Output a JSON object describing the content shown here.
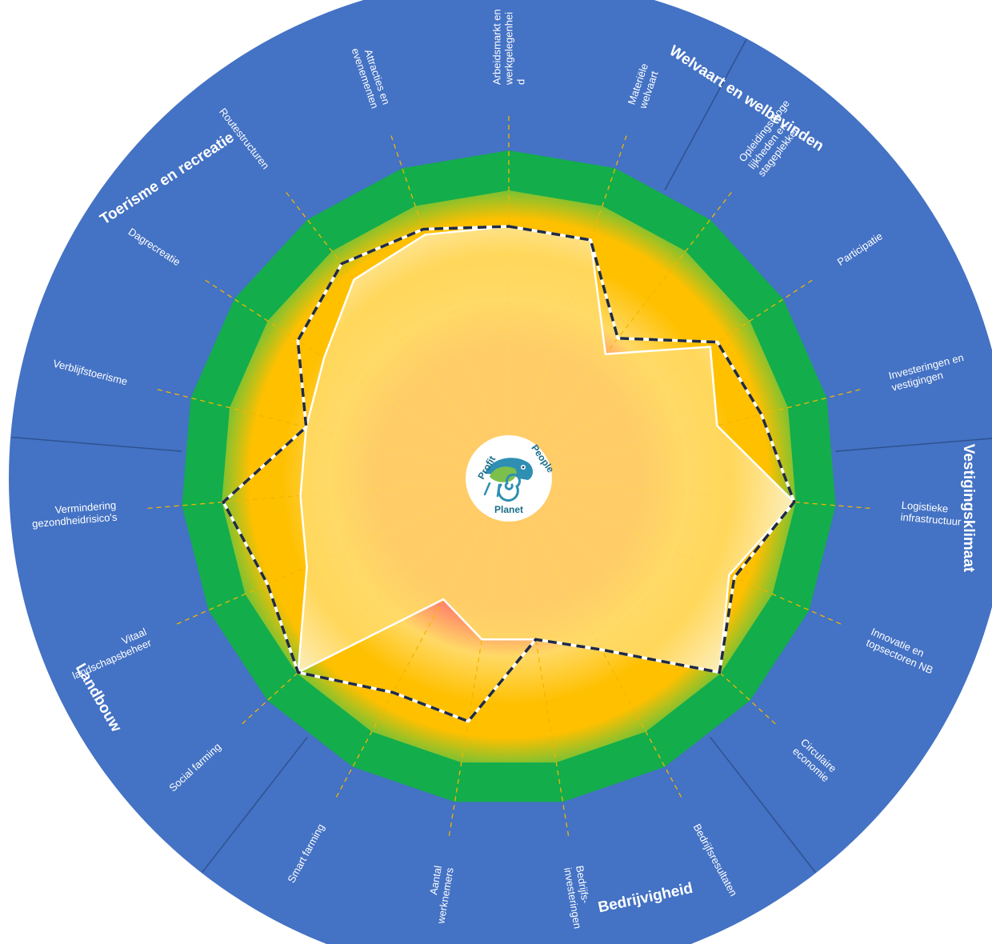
{
  "chart_data": {
    "type": "radar",
    "scale_zones": [
      "red",
      "yellow",
      "orange",
      "green"
    ],
    "categories": [
      {
        "label": [
          "Arbeidsmarkt en",
          "werkgelegenhei",
          "d"
        ],
        "value": 0.88,
        "target": 0.88
      },
      {
        "label": [
          "Materiële",
          "welvaart"
        ],
        "value": 0.88,
        "target": 0.88
      },
      {
        "label": [
          "Opleidingsmoge",
          "lijkheden en",
          "stageplekken"
        ],
        "value": 0.55,
        "target": 0.62
      },
      {
        "label": [
          "Participatie"
        ],
        "value": 0.84,
        "target": 0.87
      },
      {
        "label": [
          "Investeringen en",
          "vestigingen"
        ],
        "value": 0.75,
        "target": 0.91
      },
      {
        "label": [
          "Logistieke",
          "infrastructuur"
        ],
        "value": 1.0,
        "target": 1.0
      },
      {
        "label": [
          "Innovatie en",
          "topsectoren NB"
        ],
        "value": 0.84,
        "target": 0.86
      },
      {
        "label": [
          "Circulaire",
          "economie"
        ],
        "value": 1.0,
        "target": 1.0
      },
      {
        "label": [
          "Bedrijfsresultaten"
        ],
        "value": 0.68,
        "target": 0.68
      },
      {
        "label": [
          "Bedrijfs-",
          "investeringen"
        ],
        "value": 0.57,
        "target": 0.57
      },
      {
        "label": [
          "Aantal",
          "werknemers"
        ],
        "value": 0.57,
        "target": 0.86
      },
      {
        "label": [
          "Smart farming"
        ],
        "value": 0.48,
        "target": 0.85
      },
      {
        "label": [
          "Social farming"
        ],
        "value": 1.0,
        "target": 1.0
      },
      {
        "label": [
          "Vitaal",
          "landschapsbeheer"
        ],
        "value": 0.77,
        "target": 0.92
      },
      {
        "label": [
          "Vermindering",
          "gezondheidrisico's"
        ],
        "value": 0.73,
        "target": 1.0
      },
      {
        "label": [
          "Verblijfstoerisme"
        ],
        "value": 0.73,
        "target": 0.73
      },
      {
        "label": [
          "Dagrecreatie"
        ],
        "value": 0.77,
        "target": 0.88
      },
      {
        "label": [
          "Routestructuren"
        ],
        "value": 0.88,
        "target": 0.95
      },
      {
        "label": [
          "Attracties en",
          "evenementen"
        ],
        "value": 0.9,
        "target": 0.92
      }
    ]
  },
  "sections": [
    {
      "name": "Welvaart en welbevinden"
    },
    {
      "name": "Vestigingsklimaat"
    },
    {
      "name": "Bedrijvigheid"
    },
    {
      "name": "Landbouw"
    },
    {
      "name": "Toerisme en recreatie"
    }
  ],
  "logo": {
    "profit": "Profit",
    "people": "People",
    "planet": "Planet"
  },
  "colors": {
    "outer_ring": "#4472c4",
    "green_band": "#13ad4b",
    "orange": "#ffc000",
    "red": "#ff6b6b",
    "actual_fill": "#ffd966",
    "actual_line": "#ffffff",
    "target_line": "#1f2a44",
    "spoke": "#f4b400"
  }
}
